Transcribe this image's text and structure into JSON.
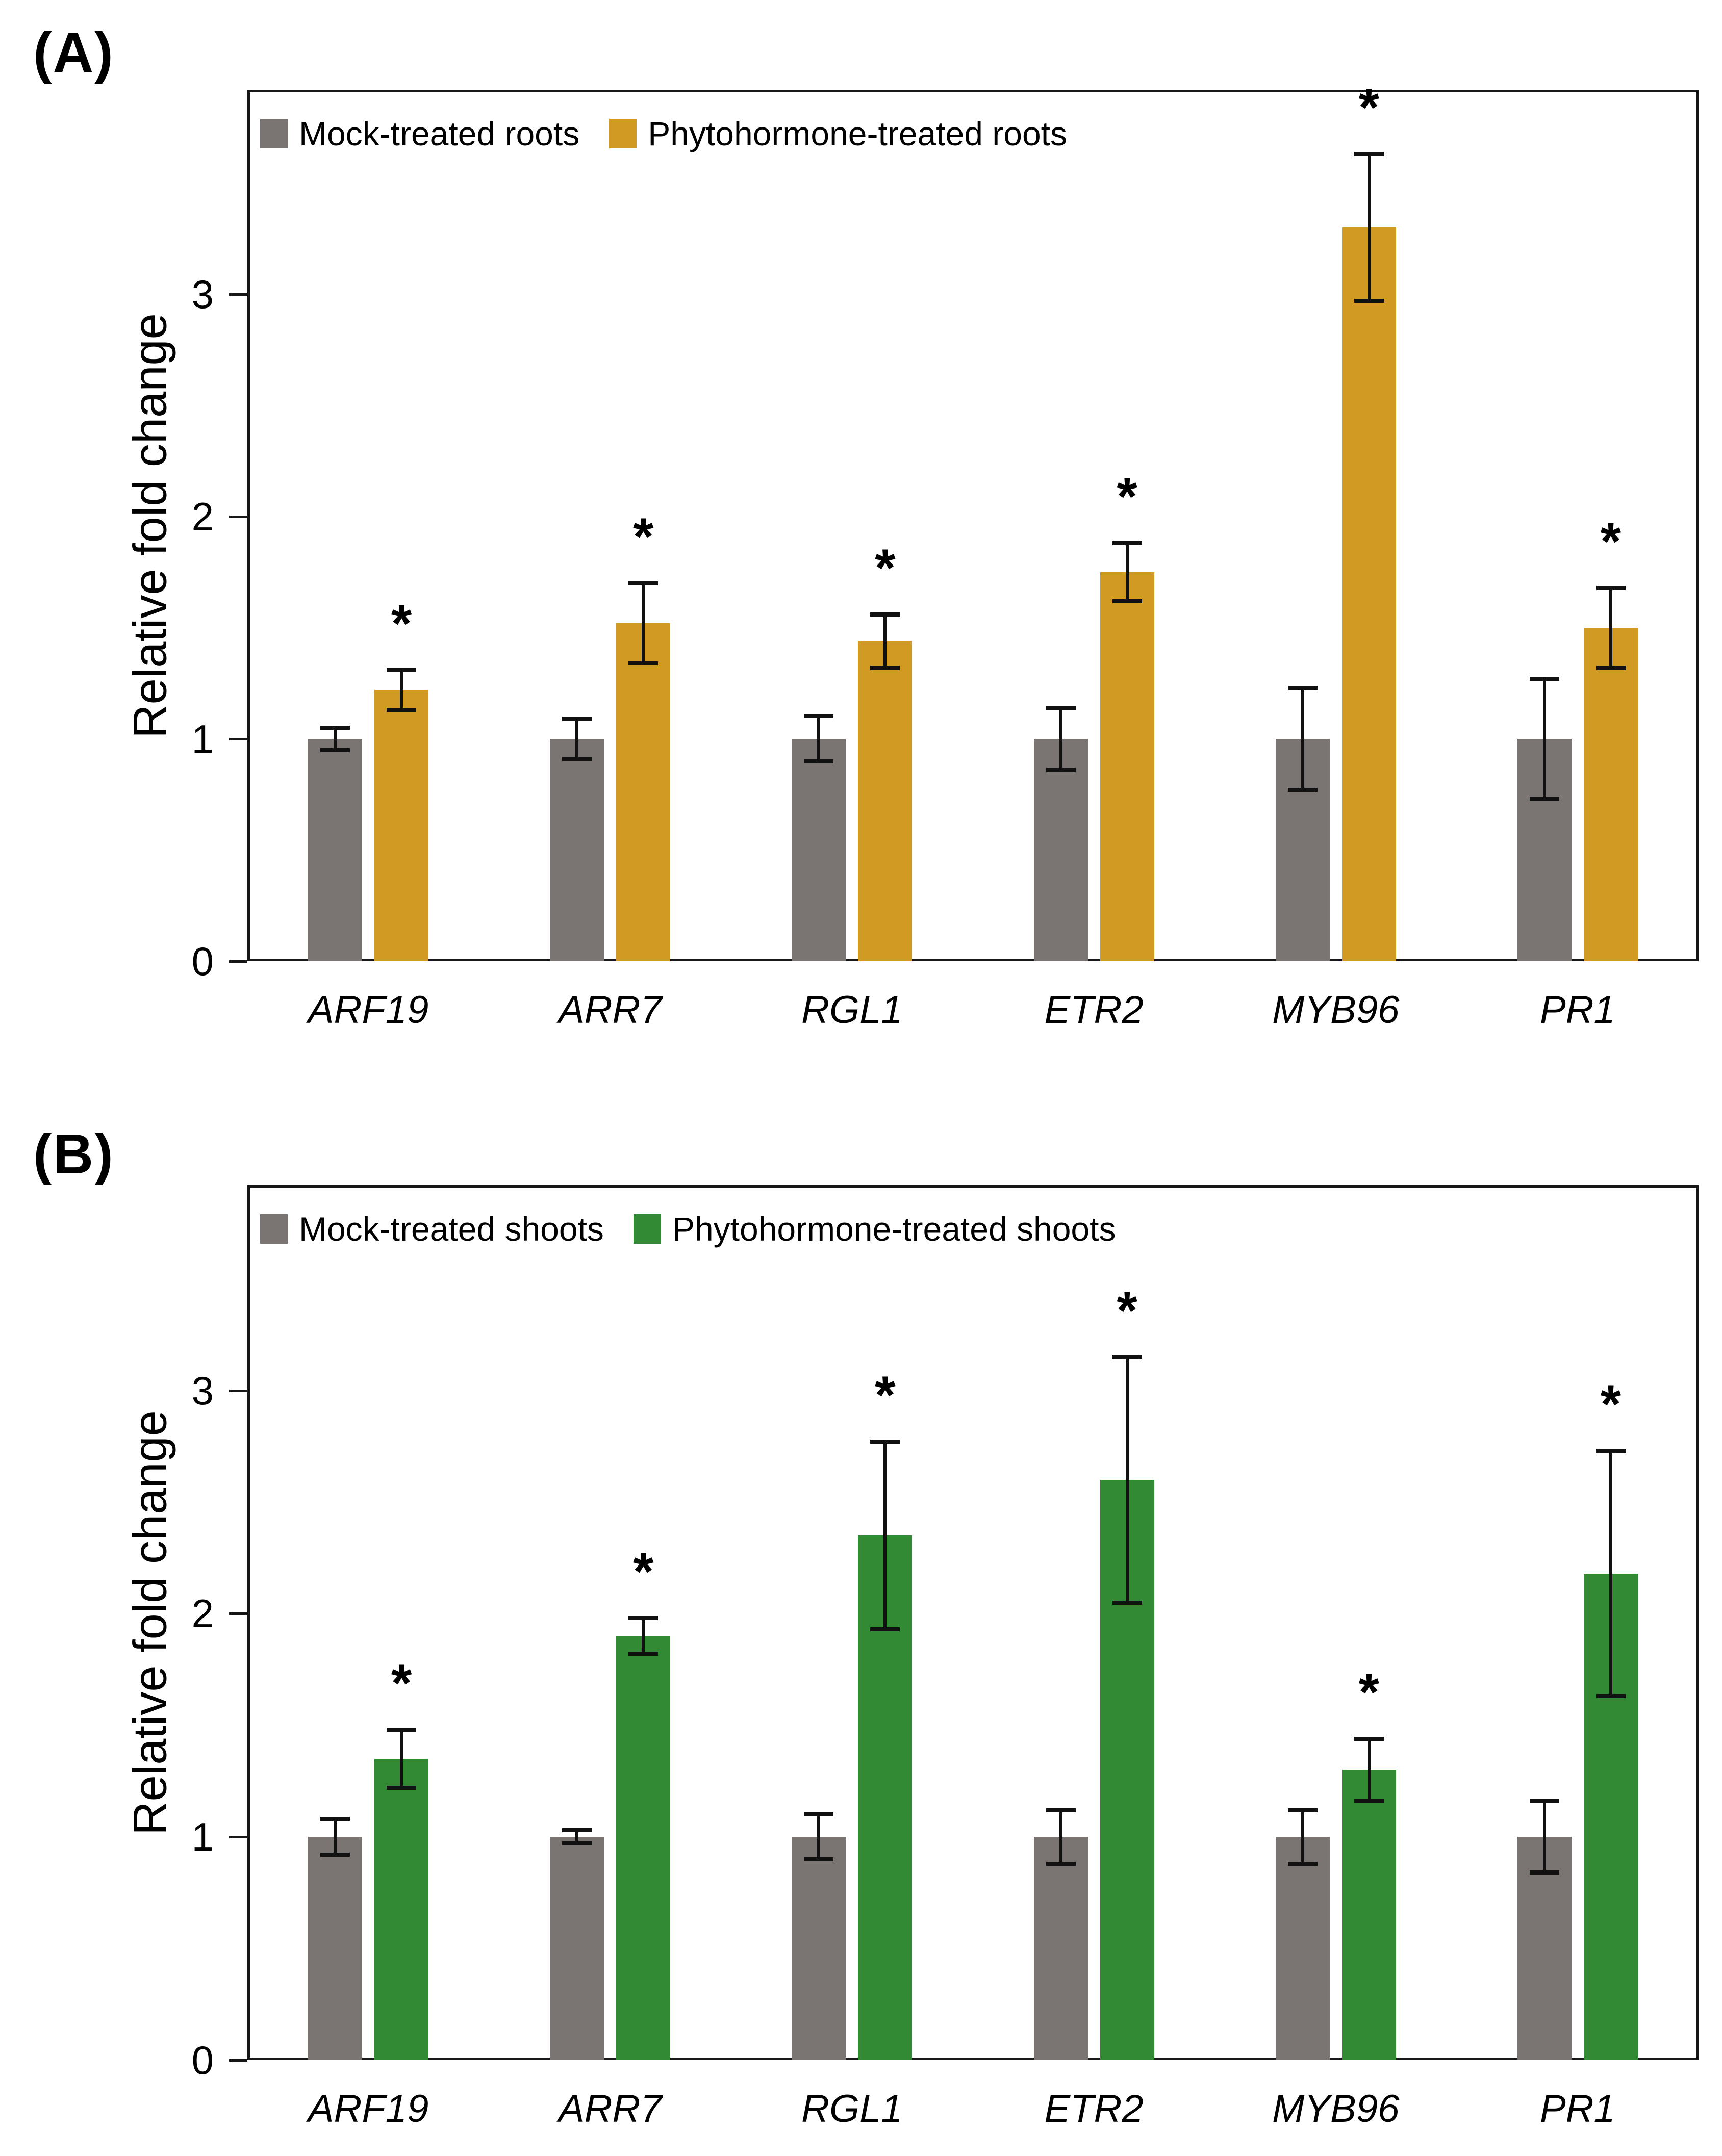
{
  "figure": {
    "background": "#ffffff",
    "axis_color": "#161616",
    "error_bar_color": "#111111"
  },
  "chart_data": [
    {
      "type": "bar",
      "panel_label": "(A)",
      "ylabel": "Relative fold change",
      "yticks": [
        0,
        1,
        2,
        3
      ],
      "ylim": [
        0,
        3.92
      ],
      "grid": false,
      "legend_position": "top-left-inside",
      "categories": [
        "ARF19",
        "ARR7",
        "RGL1",
        "ETR2",
        "MYB96",
        "PR1"
      ],
      "series": [
        {
          "name": "Mock-treated roots",
          "color": "#7a7472",
          "values": [
            1.0,
            1.0,
            1.0,
            1.0,
            1.0,
            1.0
          ],
          "errors": [
            0.05,
            0.09,
            0.1,
            0.14,
            0.23,
            0.27
          ],
          "significance": [
            "",
            "",
            "",
            "",
            "",
            ""
          ]
        },
        {
          "name": "Phytohormone-treated roots",
          "color": "#d19a22",
          "values": [
            1.22,
            1.52,
            1.44,
            1.75,
            3.3,
            1.5
          ],
          "errors": [
            0.09,
            0.18,
            0.12,
            0.13,
            0.33,
            0.18
          ],
          "significance": [
            "*",
            "*",
            "*",
            "*",
            "*",
            "*"
          ]
        }
      ]
    },
    {
      "type": "bar",
      "panel_label": "(B)",
      "ylabel": "Relative fold change",
      "yticks": [
        0,
        1,
        2,
        3
      ],
      "ylim": [
        0,
        3.92
      ],
      "grid": false,
      "legend_position": "top-left-inside",
      "categories": [
        "ARF19",
        "ARR7",
        "RGL1",
        "ETR2",
        "MYB96",
        "PR1"
      ],
      "series": [
        {
          "name": "Mock-treated shoots",
          "color": "#7a7472",
          "values": [
            1.0,
            1.0,
            1.0,
            1.0,
            1.0,
            1.0
          ],
          "errors": [
            0.08,
            0.03,
            0.1,
            0.12,
            0.12,
            0.16
          ],
          "significance": [
            "",
            "",
            "",
            "",
            "",
            ""
          ]
        },
        {
          "name": "Phytohormone-treated shoots",
          "color": "#338a34",
          "values": [
            1.35,
            1.9,
            2.35,
            2.6,
            1.3,
            2.18
          ],
          "errors": [
            0.13,
            0.08,
            0.42,
            0.55,
            0.14,
            0.55
          ],
          "significance": [
            "*",
            "*",
            "*",
            "*",
            "*",
            "*"
          ]
        }
      ]
    }
  ]
}
